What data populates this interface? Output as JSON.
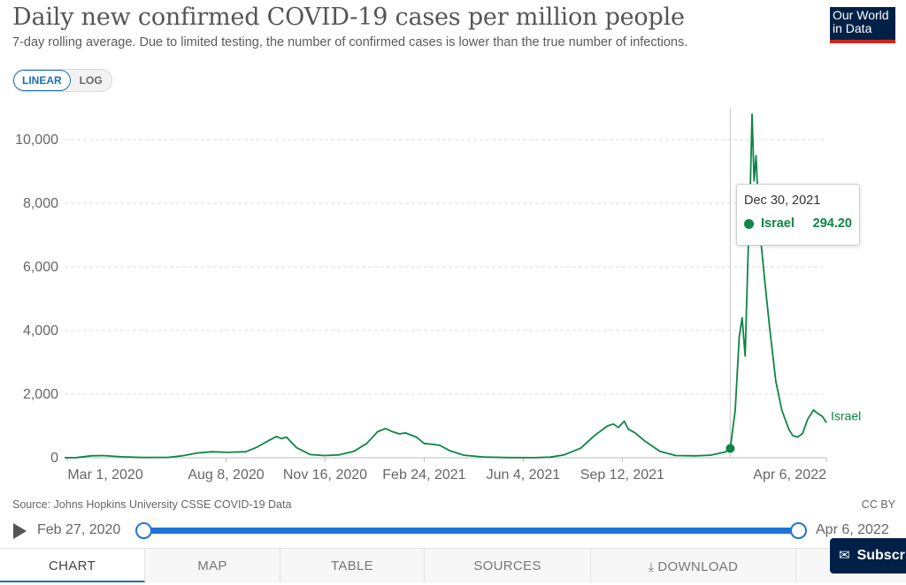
{
  "header": {
    "title": "Daily new confirmed COVID-19 cases per million people",
    "subtitle": "7-day rolling average. Due to limited testing, the number of confirmed cases is lower than the true number of infections.",
    "logo_line1": "Our World",
    "logo_line2": "in Data"
  },
  "scale_toggle": {
    "linear_label": "LINEAR",
    "log_label": "LOG",
    "selected": "LINEAR"
  },
  "tooltip": {
    "date": "Dec 30, 2021",
    "series": "Israel",
    "value": "294.20"
  },
  "footer": {
    "source": "Source: Johns Hopkins University CSSE COVID-19 Data",
    "license": "CC BY"
  },
  "timeline": {
    "start_label": "Feb 27, 2020",
    "end_label": "Apr 6, 2022"
  },
  "tabs": {
    "chart": "CHART",
    "map": "MAP",
    "table": "TABLE",
    "sources": "SOURCES",
    "download": "DOWNLOAD"
  },
  "subscribe_label": "Subscribe",
  "colors": {
    "series": "#0d8545",
    "accent": "#1d6fb8",
    "brand": "#002147",
    "brand_red": "#ce261e"
  },
  "icons": {
    "play": "play-icon",
    "download": "download-icon",
    "subscribe": "mail-icon"
  },
  "chart_data": {
    "type": "line",
    "title": "Daily new confirmed COVID-19 cases per million people",
    "subtitle": "7-day rolling average. Due to limited testing, the number of confirmed cases is lower than the true number of infections.",
    "x_type": "date",
    "xlim": [
      "2020-02-27",
      "2022-04-06"
    ],
    "ylim": [
      0,
      11000
    ],
    "x_ticks": [
      {
        "date": "2020-03-01",
        "label": "Mar 1, 2020"
      },
      {
        "date": "2020-08-08",
        "label": "Aug 8, 2020"
      },
      {
        "date": "2020-11-16",
        "label": "Nov 16, 2020"
      },
      {
        "date": "2021-02-24",
        "label": "Feb 24, 2021"
      },
      {
        "date": "2021-06-04",
        "label": "Jun 4, 2021"
      },
      {
        "date": "2021-09-12",
        "label": "Sep 12, 2021"
      },
      {
        "date": "2022-04-06",
        "label": "Apr 6, 2022"
      }
    ],
    "y_ticks": [
      {
        "value": 0,
        "label": "0"
      },
      {
        "value": 2000,
        "label": "2,000"
      },
      {
        "value": 4000,
        "label": "4,000"
      },
      {
        "value": 6000,
        "label": "6,000"
      },
      {
        "value": 8000,
        "label": "8,000"
      },
      {
        "value": 10000,
        "label": "10,000"
      }
    ],
    "grid": "horizontal-dashed",
    "highlight": {
      "date": "2021-12-30",
      "value": 294.2
    },
    "series": [
      {
        "name": "Israel",
        "color": "#0d8545",
        "points": [
          [
            "2020-02-27",
            0
          ],
          [
            "2020-03-10",
            5
          ],
          [
            "2020-03-25",
            60
          ],
          [
            "2020-04-05",
            70
          ],
          [
            "2020-04-25",
            30
          ],
          [
            "2020-05-15",
            8
          ],
          [
            "2020-06-10",
            12
          ],
          [
            "2020-06-25",
            60
          ],
          [
            "2020-07-10",
            150
          ],
          [
            "2020-07-25",
            190
          ],
          [
            "2020-08-10",
            170
          ],
          [
            "2020-08-28",
            190
          ],
          [
            "2020-09-08",
            330
          ],
          [
            "2020-09-20",
            540
          ],
          [
            "2020-09-28",
            670
          ],
          [
            "2020-10-03",
            600
          ],
          [
            "2020-10-08",
            650
          ],
          [
            "2020-10-18",
            320
          ],
          [
            "2020-11-01",
            100
          ],
          [
            "2020-11-15",
            70
          ],
          [
            "2020-11-30",
            90
          ],
          [
            "2020-12-15",
            200
          ],
          [
            "2020-12-28",
            450
          ],
          [
            "2021-01-08",
            820
          ],
          [
            "2021-01-16",
            920
          ],
          [
            "2021-01-22",
            830
          ],
          [
            "2021-01-30",
            750
          ],
          [
            "2021-02-05",
            780
          ],
          [
            "2021-02-16",
            650
          ],
          [
            "2021-02-24",
            450
          ],
          [
            "2021-03-05",
            420
          ],
          [
            "2021-03-12",
            390
          ],
          [
            "2021-03-22",
            220
          ],
          [
            "2021-04-05",
            80
          ],
          [
            "2021-04-25",
            25
          ],
          [
            "2021-05-20",
            5
          ],
          [
            "2021-06-15",
            3
          ],
          [
            "2021-07-01",
            20
          ],
          [
            "2021-07-15",
            90
          ],
          [
            "2021-08-01",
            300
          ],
          [
            "2021-08-15",
            700
          ],
          [
            "2021-08-28",
            1000
          ],
          [
            "2021-09-03",
            1060
          ],
          [
            "2021-09-08",
            950
          ],
          [
            "2021-09-14",
            1150
          ],
          [
            "2021-09-18",
            900
          ],
          [
            "2021-09-25",
            780
          ],
          [
            "2021-10-05",
            520
          ],
          [
            "2021-10-20",
            200
          ],
          [
            "2021-11-05",
            70
          ],
          [
            "2021-11-25",
            60
          ],
          [
            "2021-12-10",
            80
          ],
          [
            "2021-12-25",
            180
          ],
          [
            "2021-12-30",
            294.2
          ],
          [
            "2022-01-04",
            1500
          ],
          [
            "2022-01-08",
            3800
          ],
          [
            "2022-01-11",
            4400
          ],
          [
            "2022-01-14",
            3200
          ],
          [
            "2022-01-17",
            6400
          ],
          [
            "2022-01-19",
            8200
          ],
          [
            "2022-01-21",
            10800
          ],
          [
            "2022-01-23",
            8700
          ],
          [
            "2022-01-25",
            9500
          ],
          [
            "2022-01-28",
            7400
          ],
          [
            "2022-02-03",
            5500
          ],
          [
            "2022-02-08",
            4000
          ],
          [
            "2022-02-14",
            2400
          ],
          [
            "2022-02-20",
            1500
          ],
          [
            "2022-02-27",
            900
          ],
          [
            "2022-03-03",
            700
          ],
          [
            "2022-03-08",
            650
          ],
          [
            "2022-03-13",
            760
          ],
          [
            "2022-03-18",
            1200
          ],
          [
            "2022-03-24",
            1500
          ],
          [
            "2022-03-28",
            1400
          ],
          [
            "2022-04-02",
            1300
          ],
          [
            "2022-04-06",
            1100
          ]
        ]
      }
    ]
  }
}
